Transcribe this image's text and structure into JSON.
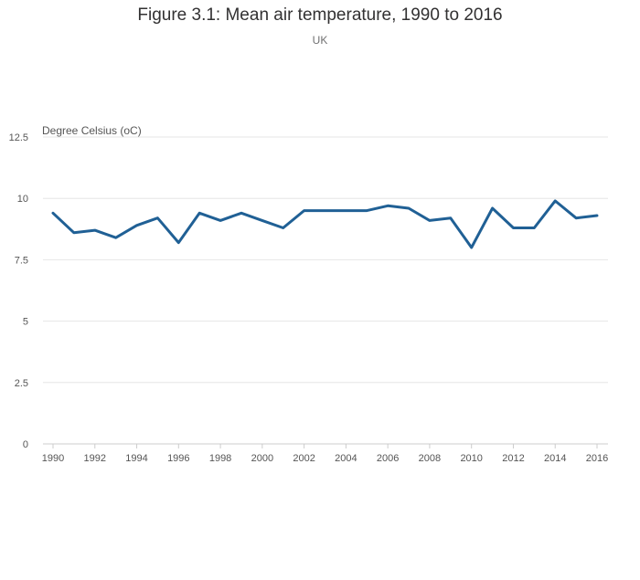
{
  "chart_data": {
    "type": "line",
    "title": "Figure 3.1: Mean air temperature, 1990 to 2016",
    "subtitle": "UK",
    "xlabel": "",
    "ylabel": "Degree Celsius (oC)",
    "ylim": [
      0,
      12.5
    ],
    "xlim": [
      1990,
      2016
    ],
    "yticks": [
      0,
      2.5,
      5,
      7.5,
      10,
      12.5
    ],
    "ytick_labels": [
      "0",
      "2.5",
      "5",
      "7.5",
      "10",
      "12.5"
    ],
    "xticks": [
      1990,
      1992,
      1994,
      1996,
      1998,
      2000,
      2002,
      2004,
      2006,
      2008,
      2010,
      2012,
      2014,
      2016
    ],
    "xtick_labels": [
      "1990",
      "1992",
      "1994",
      "1996",
      "1998",
      "2000",
      "2002",
      "2004",
      "2006",
      "2008",
      "2010",
      "2012",
      "2014",
      "2016"
    ],
    "grid": true,
    "series": [
      {
        "name": "Mean air temperature",
        "color": "#206095",
        "x": [
          1990,
          1991,
          1992,
          1993,
          1994,
          1995,
          1996,
          1997,
          1998,
          1999,
          2000,
          2001,
          2002,
          2003,
          2004,
          2005,
          2006,
          2007,
          2008,
          2009,
          2010,
          2011,
          2012,
          2013,
          2014,
          2015,
          2016
        ],
        "values": [
          9.4,
          8.6,
          8.7,
          8.4,
          8.9,
          9.2,
          8.2,
          9.4,
          9.1,
          9.4,
          9.1,
          8.8,
          9.5,
          9.5,
          9.5,
          9.5,
          9.7,
          9.6,
          9.1,
          9.2,
          8.0,
          9.6,
          8.8,
          8.8,
          9.9,
          9.2,
          9.3
        ]
      }
    ]
  }
}
